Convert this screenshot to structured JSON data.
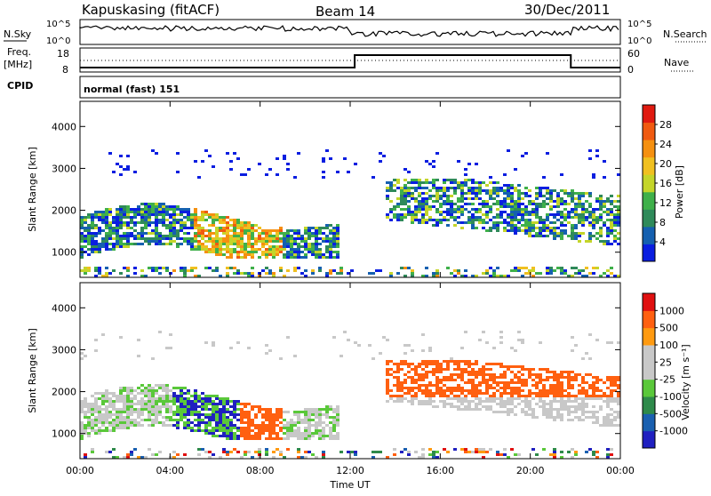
{
  "header": {
    "station": "Kapuskasing (fitACF)",
    "beam": "Beam 14",
    "date": "30/Dec/2011"
  },
  "status_panels": {
    "nsky_label": "N.Sky",
    "nsearch_label": "N.Search",
    "noise_ticks": [
      "10^5",
      "10^0"
    ],
    "freq_label": "Freq.",
    "freq_unit": "[MHz]",
    "freq_ticks": [
      "18",
      "8"
    ],
    "nave_label": "Nave",
    "nave_ticks": [
      "60",
      "0"
    ],
    "cpid_label": "CPID",
    "cpid_value": "normal (fast) 151"
  },
  "colors": {
    "power_scale": [
      "#0a1ee0",
      "#1560b0",
      "#2f8a5a",
      "#3fb04a",
      "#c4d52a",
      "#f0c020",
      "#f59010",
      "#f05a10",
      "#e01a10"
    ],
    "velocity_scale": [
      "#2020c0",
      "#1a60b0",
      "#2e8a4a",
      "#5ac83a",
      "#c8c8c8",
      "#c8c8c8",
      "#ff9a10",
      "#ff6010",
      "#e01010"
    ]
  },
  "chart_data": [
    {
      "type": "heatmap",
      "name": "power",
      "xlabel": "",
      "ylabel": "Slant Range [km]",
      "yticks": [
        "1000",
        "2000",
        "3000",
        "4000"
      ],
      "ylim": [
        400,
        4600
      ],
      "xlim": [
        "00:00",
        "24:00"
      ],
      "colorbar": {
        "label": "Power [dB]",
        "ticks": [
          "4",
          "8",
          "12",
          "16",
          "20",
          "24",
          "28"
        ],
        "range": [
          0,
          32
        ]
      }
    },
    {
      "type": "heatmap",
      "name": "velocity",
      "xlabel": "Time UT",
      "ylabel": "Slant Range [km]",
      "yticks": [
        "1000",
        "2000",
        "3000",
        "4000"
      ],
      "ylim": [
        400,
        4600
      ],
      "xticks": [
        "00:00",
        "04:00",
        "08:00",
        "12:00",
        "16:00",
        "20:00",
        "00:00"
      ],
      "colorbar": {
        "label": "Velocity [m s⁻¹]",
        "ticks": [
          "1000",
          "500",
          "100",
          "25",
          "-25",
          "-100",
          "-500",
          "-1000"
        ]
      }
    }
  ]
}
